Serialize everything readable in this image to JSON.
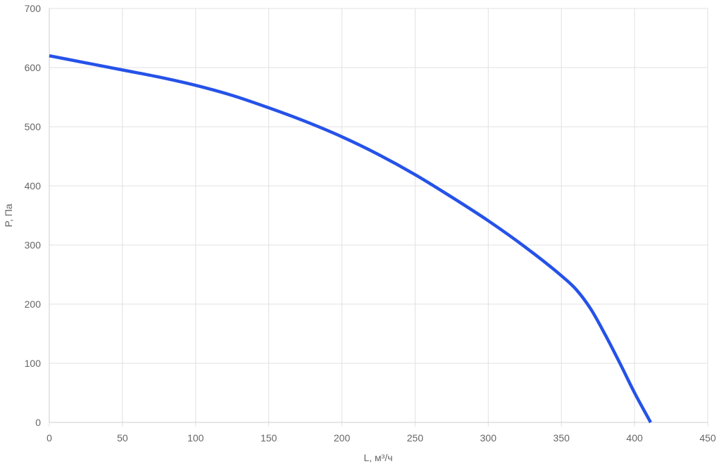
{
  "chart_data": {
    "type": "line",
    "xlabel": "L, м³/ч",
    "ylabel": "P, Па",
    "xlim": [
      0,
      450
    ],
    "ylim": [
      0,
      700
    ],
    "x_ticks": [
      0,
      50,
      100,
      150,
      200,
      250,
      300,
      350,
      400,
      450
    ],
    "y_ticks": [
      0,
      100,
      200,
      300,
      400,
      500,
      600,
      700
    ],
    "grid": true,
    "series": [
      {
        "color": "#2552e8",
        "points": [
          [
            0,
            620
          ],
          [
            25,
            608
          ],
          [
            50,
            596
          ],
          [
            75,
            584
          ],
          [
            100,
            570
          ],
          [
            125,
            553
          ],
          [
            150,
            532
          ],
          [
            175,
            509
          ],
          [
            200,
            483
          ],
          [
            225,
            453
          ],
          [
            250,
            419
          ],
          [
            275,
            381
          ],
          [
            300,
            341
          ],
          [
            325,
            297
          ],
          [
            350,
            248
          ],
          [
            360,
            225
          ],
          [
            370,
            192
          ],
          [
            380,
            148
          ],
          [
            390,
            100
          ],
          [
            400,
            50
          ],
          [
            411,
            0
          ]
        ]
      }
    ]
  }
}
